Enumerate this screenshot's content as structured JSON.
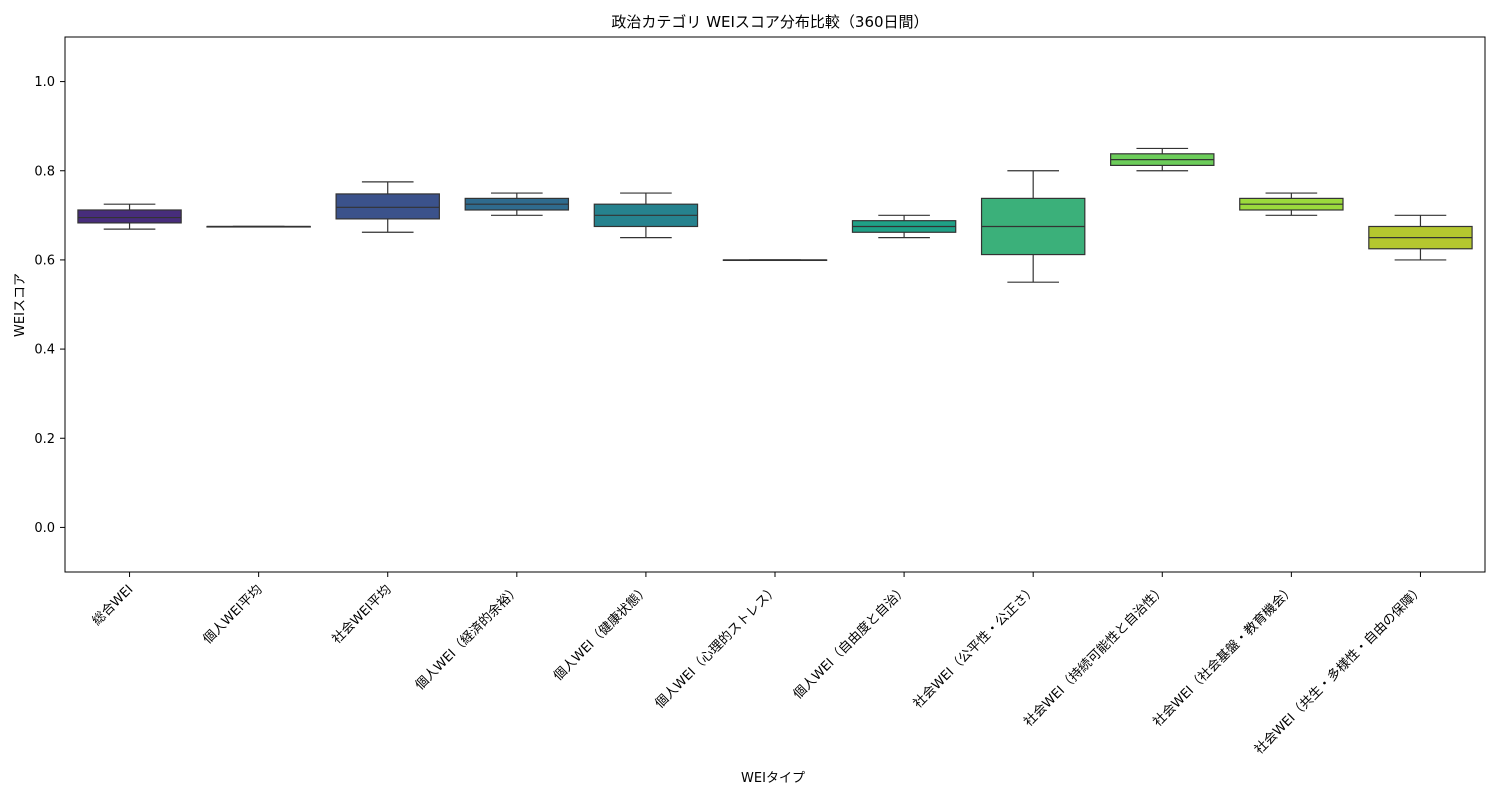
{
  "chart_data": {
    "type": "box",
    "title": "政治カテゴリ WEIスコア分布比較（360日間）",
    "xlabel": "WEIタイプ",
    "ylabel": "WEIスコア",
    "ylim": [
      -0.1,
      1.1
    ],
    "yticks": [
      "0.0",
      "0.2",
      "0.4",
      "0.6",
      "0.8",
      "1.0"
    ],
    "categories": [
      "総合WEI",
      "個人WEI平均",
      "社会WEI平均",
      "個人WEI（経済的余裕）",
      "個人WEI（健康状態）",
      "個人WEI（心理的ストレス）",
      "個人WEI（自由度と自治）",
      "社会WEI（公平性・公正さ）",
      "社会WEI（持続可能性と自治性）",
      "社会WEI（社会基盤・教育機会）",
      "社会WEI（共生・多様性・自由の保障）"
    ],
    "boxes": [
      {
        "whisker_low": 0.669,
        "q1": 0.683,
        "median": 0.695,
        "q3": 0.712,
        "whisker_high": 0.725,
        "color": "#472d7b"
      },
      {
        "whisker_low": 0.675,
        "q1": 0.675,
        "median": 0.675,
        "q3": 0.675,
        "whisker_high": 0.675,
        "color": "#46327e"
      },
      {
        "whisker_low": 0.662,
        "q1": 0.692,
        "median": 0.718,
        "q3": 0.748,
        "whisker_high": 0.775,
        "color": "#3b528b"
      },
      {
        "whisker_low": 0.7,
        "q1": 0.712,
        "median": 0.725,
        "q3": 0.738,
        "whisker_high": 0.75,
        "color": "#2f6b8e"
      },
      {
        "whisker_low": 0.65,
        "q1": 0.675,
        "median": 0.7,
        "q3": 0.725,
        "whisker_high": 0.75,
        "color": "#26828e"
      },
      {
        "whisker_low": 0.6,
        "q1": 0.6,
        "median": 0.6,
        "q3": 0.6,
        "whisker_high": 0.6,
        "color": "#21918c"
      },
      {
        "whisker_low": 0.65,
        "q1": 0.662,
        "median": 0.675,
        "q3": 0.688,
        "whisker_high": 0.7,
        "color": "#1fa187"
      },
      {
        "whisker_low": 0.55,
        "q1": 0.612,
        "median": 0.675,
        "q3": 0.738,
        "whisker_high": 0.8,
        "color": "#3bb07a"
      },
      {
        "whisker_low": 0.8,
        "q1": 0.812,
        "median": 0.825,
        "q3": 0.838,
        "whisker_high": 0.85,
        "color": "#6ccd5a"
      },
      {
        "whisker_low": 0.7,
        "q1": 0.712,
        "median": 0.725,
        "q3": 0.738,
        "whisker_high": 0.75,
        "color": "#9bd93c"
      },
      {
        "whisker_low": 0.6,
        "q1": 0.625,
        "median": 0.65,
        "q3": 0.675,
        "whisker_high": 0.7,
        "color": "#b5c72f"
      }
    ],
    "grid": false,
    "legend": "none"
  }
}
